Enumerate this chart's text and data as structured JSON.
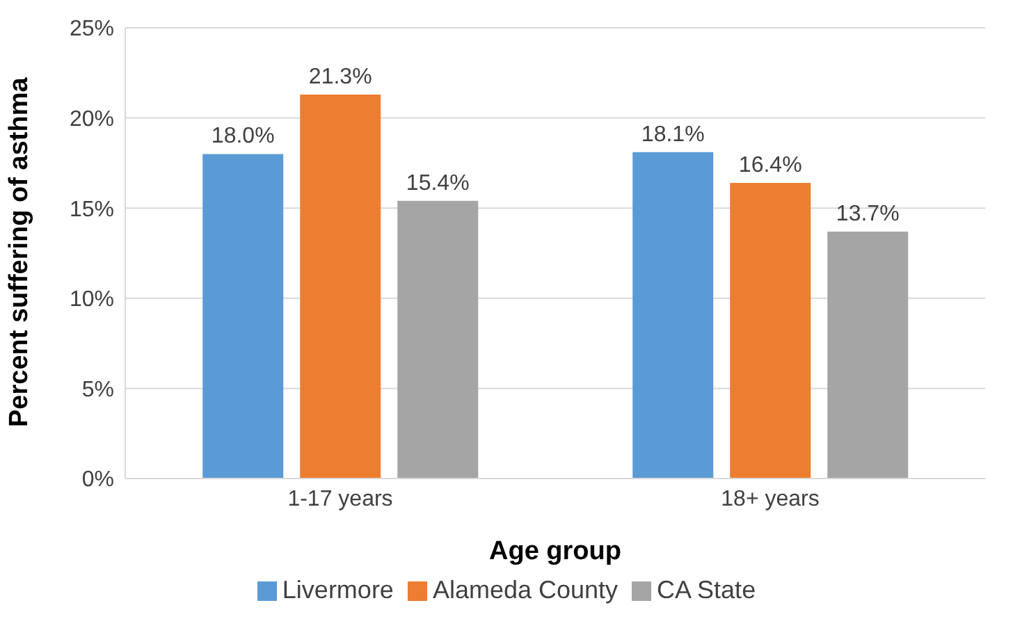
{
  "chart_data": {
    "type": "bar",
    "xlabel": "Age group",
    "ylabel": "Percent suffering of asthma",
    "categories": [
      "1-17 years",
      "18+ years"
    ],
    "series": [
      {
        "name": "Livermore",
        "color": "#5b9bd5",
        "values": [
          18.0,
          18.1
        ],
        "value_labels": [
          "18.0%",
          "18.1%"
        ]
      },
      {
        "name": "Alameda County",
        "color": "#ed7d31",
        "values": [
          21.3,
          16.4
        ],
        "value_labels": [
          "21.3%",
          "16.4%"
        ]
      },
      {
        "name": "CA State",
        "color": "#a5a5a5",
        "values": [
          15.4,
          13.7
        ],
        "value_labels": [
          "15.4%",
          "13.7%"
        ]
      }
    ],
    "ylim": [
      0,
      25
    ],
    "yticks": [
      {
        "value": 0,
        "label": "0%"
      },
      {
        "value": 5,
        "label": "5%"
      },
      {
        "value": 10,
        "label": "10%"
      },
      {
        "value": 15,
        "label": "15%"
      },
      {
        "value": 20,
        "label": "20%"
      },
      {
        "value": 25,
        "label": "25%"
      }
    ],
    "grid": "y",
    "legend": "bottom"
  }
}
